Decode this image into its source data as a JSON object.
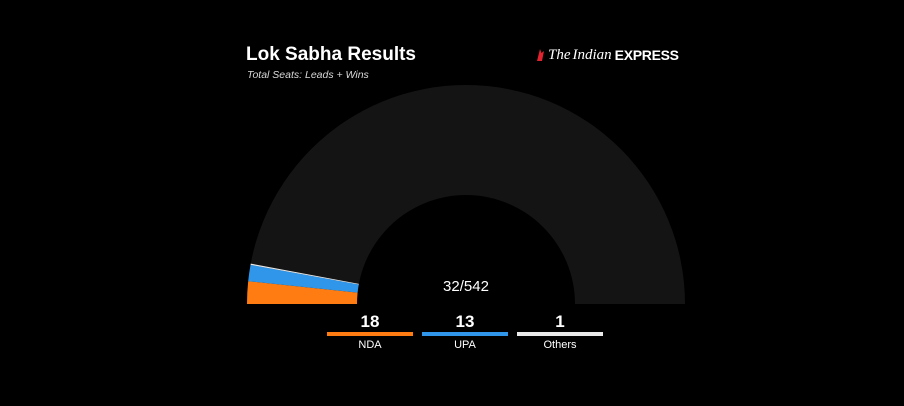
{
  "header": {
    "title": "Lok Sabha Results",
    "subtitle": "Total Seats: Leads + Wins"
  },
  "brand": {
    "the": "The",
    "indian": "Indian",
    "express": "EXPRESS",
    "mark_color": "#e0232e"
  },
  "summary": {
    "count_text": "32/542"
  },
  "chart_data": {
    "type": "pie",
    "total": 542,
    "declared": 32,
    "slices": [
      {
        "name": "NDA",
        "value": 18,
        "color": "#ff7c12"
      },
      {
        "name": "UPA",
        "value": 13,
        "color": "#2f96e9"
      },
      {
        "name": "Others",
        "value": 1,
        "color": "#e9e9e9"
      }
    ],
    "remaining_color": "#141414"
  },
  "legend": [
    {
      "name": "NDA",
      "value": "18",
      "color": "#ff7c12"
    },
    {
      "name": "UPA",
      "value": "13",
      "color": "#2f96e9"
    },
    {
      "name": "Others",
      "value": "1",
      "color": "#e9e9e9"
    }
  ]
}
